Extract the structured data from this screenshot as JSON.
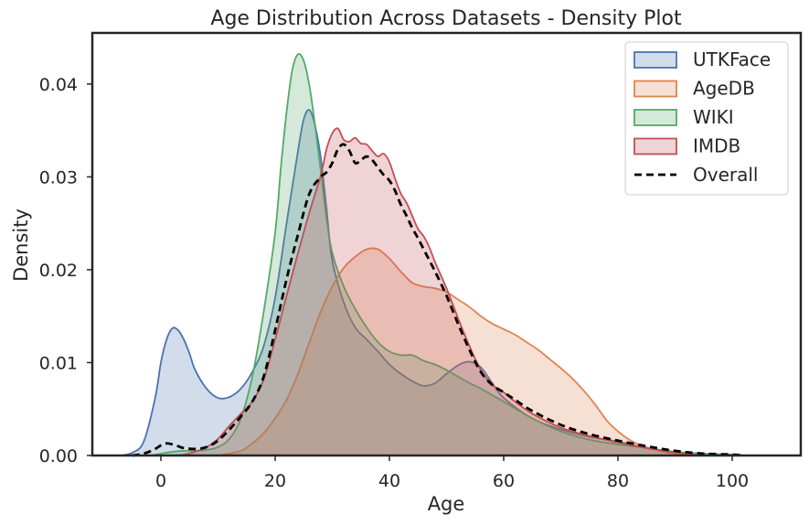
{
  "chart_data": {
    "type": "area",
    "title": "Age Distribution Across Datasets - Density Plot",
    "xlabel": "Age",
    "ylabel": "Density",
    "xlim": [
      -12,
      112
    ],
    "ylim": [
      0,
      0.0455
    ],
    "xticks": [
      0,
      20,
      40,
      60,
      80,
      100
    ],
    "xtick_labels": [
      "0",
      "20",
      "40",
      "60",
      "80",
      "100"
    ],
    "yticks": [
      0,
      0.01,
      0.02,
      0.03,
      0.04
    ],
    "ytick_labels": [
      "0.00",
      "0.01",
      "0.02",
      "0.03",
      "0.04"
    ],
    "grid": false,
    "legend_position": "top-right",
    "series": [
      {
        "name": "UTKFace",
        "color": "#4c72b0",
        "style": "solid",
        "filled": true,
        "x": [
          -7,
          -5,
          -3,
          -1,
          0,
          1,
          2,
          3,
          4,
          5,
          6,
          8,
          10,
          12,
          14,
          16,
          18,
          20,
          22,
          24,
          25,
          26,
          27,
          28,
          29,
          30,
          32,
          34,
          36,
          38,
          40,
          42,
          44,
          46,
          48,
          50,
          52,
          54,
          56,
          58,
          60,
          65,
          70,
          75,
          80,
          85,
          90,
          95,
          100
        ],
        "y": [
          0,
          0.0003,
          0.0015,
          0.0062,
          0.01,
          0.0125,
          0.0137,
          0.0135,
          0.0125,
          0.011,
          0.0092,
          0.0072,
          0.0062,
          0.0063,
          0.0072,
          0.009,
          0.0118,
          0.017,
          0.025,
          0.0328,
          0.0362,
          0.0372,
          0.0355,
          0.032,
          0.0265,
          0.021,
          0.0165,
          0.0138,
          0.0125,
          0.0112,
          0.0098,
          0.0088,
          0.008,
          0.0075,
          0.0078,
          0.0088,
          0.0097,
          0.0101,
          0.0095,
          0.0078,
          0.0062,
          0.004,
          0.0028,
          0.002,
          0.0015,
          0.0008,
          0.0003,
          0.0001,
          0
        ]
      },
      {
        "name": "AgeDB",
        "color": "#dd8452",
        "style": "solid",
        "filled": true,
        "x": [
          10,
          14,
          16,
          18,
          20,
          22,
          24,
          26,
          28,
          30,
          32,
          34,
          36,
          38,
          40,
          42,
          44,
          46,
          48,
          50,
          52,
          54,
          56,
          58,
          60,
          62,
          64,
          66,
          68,
          70,
          72,
          74,
          76,
          78,
          80,
          82,
          84,
          86,
          88,
          90,
          95,
          100,
          104
        ],
        "y": [
          0,
          0.0005,
          0.0013,
          0.0024,
          0.004,
          0.006,
          0.0088,
          0.0122,
          0.0155,
          0.0182,
          0.0202,
          0.0214,
          0.0222,
          0.0222,
          0.0212,
          0.0198,
          0.0186,
          0.0182,
          0.018,
          0.0176,
          0.0168,
          0.016,
          0.015,
          0.0142,
          0.0136,
          0.013,
          0.0122,
          0.0114,
          0.0104,
          0.0094,
          0.0083,
          0.007,
          0.0055,
          0.0038,
          0.0026,
          0.0017,
          0.0011,
          0.0007,
          0.0004,
          0.0002,
          0.0001,
          0,
          0
        ]
      },
      {
        "name": "WIKI",
        "color": "#55a868",
        "style": "solid",
        "filled": true,
        "x": [
          -2,
          0,
          2,
          4,
          6,
          8,
          10,
          12,
          14,
          16,
          18,
          20,
          21,
          22,
          23,
          24,
          25,
          26,
          27,
          28,
          29,
          30,
          32,
          34,
          36,
          38,
          40,
          42,
          44,
          46,
          48,
          50,
          52,
          54,
          56,
          58,
          60,
          65,
          70,
          75,
          80,
          85,
          90,
          95,
          100,
          102
        ],
        "y": [
          0,
          0.0002,
          0.0004,
          0.0005,
          0.0005,
          0.0006,
          0.0009,
          0.0018,
          0.004,
          0.0085,
          0.0155,
          0.024,
          0.031,
          0.037,
          0.0415,
          0.0432,
          0.0425,
          0.0398,
          0.0355,
          0.0305,
          0.0255,
          0.0218,
          0.0182,
          0.0158,
          0.0138,
          0.0122,
          0.0112,
          0.0108,
          0.0108,
          0.0102,
          0.0098,
          0.0092,
          0.0085,
          0.0078,
          0.0072,
          0.0065,
          0.0058,
          0.004,
          0.0026,
          0.0017,
          0.0012,
          0.0008,
          0.0004,
          0.0002,
          0.0001,
          0
        ]
      },
      {
        "name": "IMDB",
        "color": "#c44e52",
        "style": "solid",
        "filled": true,
        "x": [
          2,
          4,
          6,
          8,
          10,
          12,
          14,
          16,
          18,
          20,
          22,
          24,
          26,
          28,
          29,
          30,
          31,
          32,
          33,
          34,
          35,
          36,
          37,
          38,
          39,
          40,
          41,
          42,
          43,
          44,
          45,
          46,
          47,
          48,
          50,
          52,
          54,
          56,
          58,
          60,
          62,
          65,
          70,
          75,
          80,
          85,
          90,
          95
        ],
        "y": [
          0,
          0.0001,
          0.0004,
          0.0009,
          0.0018,
          0.0032,
          0.0045,
          0.0058,
          0.0082,
          0.0125,
          0.0172,
          0.0218,
          0.0262,
          0.0302,
          0.033,
          0.0347,
          0.0352,
          0.034,
          0.0338,
          0.0342,
          0.0336,
          0.0335,
          0.0328,
          0.0322,
          0.0325,
          0.0316,
          0.0298,
          0.0282,
          0.0272,
          0.0258,
          0.0244,
          0.0236,
          0.0224,
          0.0208,
          0.018,
          0.0148,
          0.0118,
          0.0092,
          0.0076,
          0.0068,
          0.0058,
          0.0045,
          0.003,
          0.0021,
          0.0014,
          0.0008,
          0.0003,
          0
        ]
      },
      {
        "name": "Overall",
        "color": "#000000",
        "style": "dashed",
        "filled": false,
        "x": [
          -5,
          -3,
          -1,
          0,
          1,
          2,
          3,
          4,
          6,
          8,
          10,
          12,
          14,
          16,
          18,
          20,
          22,
          24,
          26,
          28,
          29,
          30,
          31,
          32,
          33,
          34,
          35,
          36,
          37,
          38,
          39,
          40,
          41,
          42,
          43,
          44,
          45,
          46,
          47,
          48,
          50,
          52,
          54,
          56,
          58,
          60,
          62,
          65,
          70,
          75,
          80,
          85,
          90,
          95,
          100,
          102
        ],
        "y": [
          0,
          0.0002,
          0.0007,
          0.0011,
          0.0013,
          0.0012,
          0.001,
          0.0008,
          0.0007,
          0.0009,
          0.0016,
          0.0028,
          0.0042,
          0.0058,
          0.0085,
          0.0135,
          0.019,
          0.0238,
          0.0282,
          0.03,
          0.0305,
          0.0315,
          0.033,
          0.0335,
          0.0328,
          0.0315,
          0.0318,
          0.0322,
          0.0318,
          0.031,
          0.0302,
          0.0296,
          0.0285,
          0.027,
          0.0258,
          0.0245,
          0.0234,
          0.0222,
          0.021,
          0.0198,
          0.0172,
          0.0142,
          0.0114,
          0.009,
          0.0076,
          0.0068,
          0.006,
          0.0048,
          0.0033,
          0.0023,
          0.0016,
          0.001,
          0.0005,
          0.0002,
          0.0001,
          0
        ]
      }
    ]
  }
}
